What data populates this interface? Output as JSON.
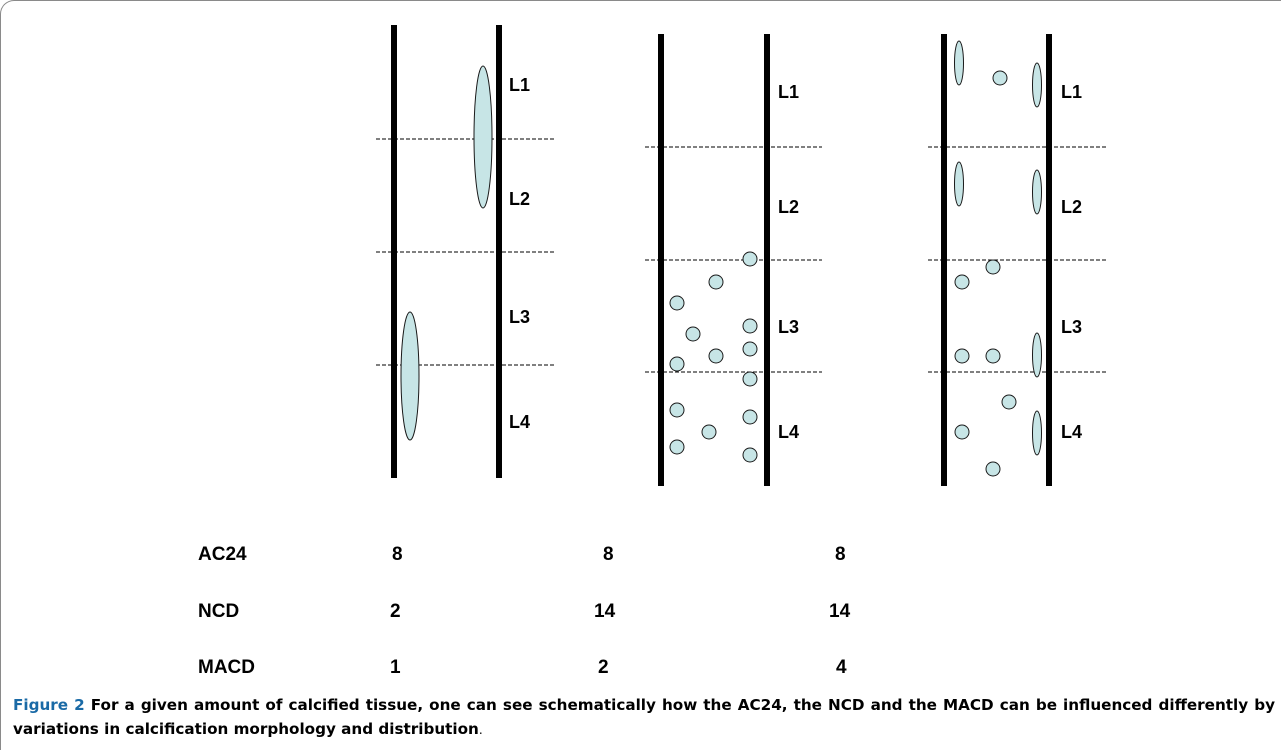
{
  "diagram": {
    "panels": [
      {
        "labels": [
          "L1",
          "L2",
          "L3",
          "L4"
        ]
      },
      {
        "labels": [
          "L1",
          "L2",
          "L3",
          "L4"
        ]
      },
      {
        "labels": [
          "L1",
          "L2",
          "L3",
          "L4"
        ]
      }
    ],
    "colors": {
      "calcification_fill": "#c7e5e6",
      "outline": "#1a1a1a",
      "wall": "#000000"
    }
  },
  "table": {
    "rows": [
      {
        "label": "AC24",
        "values": [
          "8",
          "8",
          "8"
        ]
      },
      {
        "label": "NCD",
        "values": [
          "2",
          "14",
          "14"
        ]
      },
      {
        "label": "MACD",
        "values": [
          "1",
          "2",
          "4"
        ]
      }
    ]
  },
  "caption": {
    "figure_label": "Figure 2",
    "text": " For a given amount of calcified tissue, one can see schematically how the AC24, the NCD and the MACD can be influenced differently by variations in calcification morphology and distribution",
    "period": "."
  }
}
